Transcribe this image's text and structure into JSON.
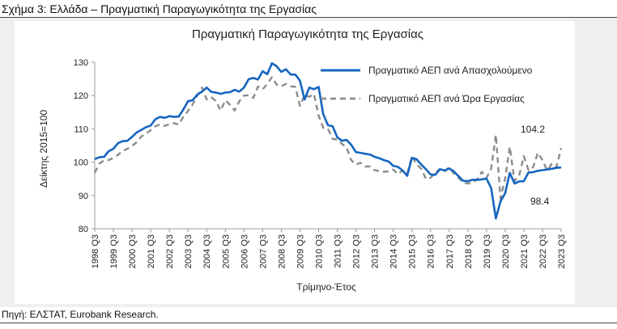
{
  "figure_title": "Σχήμα 3: Ελλάδα – Πραγματική Παραγωγικότητα της Εργασίας",
  "source": "Πηγή: ΕΛΣΤΑΤ, Eurobank Research.",
  "colors": {
    "series1": "#1565c0",
    "series2": "#8c8c8c",
    "background_band": "#efefef"
  },
  "chart_data": {
    "type": "line",
    "title": "Πραγματική Παραγωγικότητα της Εργασίας",
    "xlabel": "Τρίμηνο-Έτος",
    "ylabel": "Δείκτης 2015=100",
    "ylim": [
      80,
      130
    ],
    "yticks": [
      80,
      90,
      100,
      110,
      120,
      130
    ],
    "xticks": [
      "1998 Q3",
      "1999 Q3",
      "2000 Q3",
      "2001 Q3",
      "2002 Q3",
      "2003 Q3",
      "2004 Q3",
      "2005 Q3",
      "2006 Q3",
      "2007 Q3",
      "2008 Q3",
      "2009 Q3",
      "2010 Q3",
      "2011 Q3",
      "2012 Q3",
      "2013 Q3",
      "2014 Q3",
      "2015 Q3",
      "2016 Q3",
      "2017 Q3",
      "2018 Q3",
      "2019 Q3",
      "2020 Q3",
      "2021 Q3",
      "2022 Q3",
      "2023 Q3"
    ],
    "x_start": "1998 Q3",
    "grid": false,
    "legend_position": "top-right",
    "series": [
      {
        "name": "Πραγματικό ΑΕΠ ανά Απασχολούμενο",
        "style": "solid",
        "values": [
          100.9,
          101.5,
          101.6,
          103.3,
          104.0,
          105.7,
          106.3,
          106.4,
          107.6,
          108.9,
          109.7,
          110.5,
          111.0,
          112.9,
          113.6,
          113.3,
          113.8,
          113.6,
          113.7,
          115.8,
          118.3,
          118.6,
          120.3,
          121.2,
          122.4,
          121.1,
          120.9,
          120.5,
          120.9,
          121.0,
          121.7,
          121.2,
          122.4,
          124.9,
          125.3,
          124.8,
          127.3,
          126.4,
          129.7,
          128.8,
          127.1,
          127.9,
          126.3,
          126.3,
          124.5,
          118.8,
          122.4,
          121.9,
          122.6,
          114.4,
          111.1,
          110.8,
          107.5,
          106.4,
          106.7,
          105.2,
          103.0,
          102.8,
          102.5,
          102.3,
          101.6,
          101.2,
          100.6,
          100.2,
          98.9,
          98.6,
          97.5,
          95.9,
          101.3,
          100.9,
          99.3,
          97.9,
          96.3,
          96.2,
          97.9,
          97.5,
          98.1,
          97.2,
          95.8,
          94.4,
          94.3,
          94.7,
          94.7,
          94.8,
          95.1,
          92.2,
          83.1,
          88.2,
          90.7,
          96.8,
          93.6,
          94.2,
          94.3,
          96.9,
          97.0,
          97.4,
          97.6,
          97.8,
          98.0,
          98.3,
          98.4
        ]
      },
      {
        "name": "Πραγματικό ΑΕΠ ανά Ώρα Εργασίας",
        "style": "dashed",
        "values": [
          96.8,
          99.6,
          100.5,
          100.6,
          101.3,
          102.2,
          103.4,
          104.0,
          104.9,
          106.0,
          107.7,
          108.6,
          109.6,
          110.8,
          111.3,
          110.9,
          111.4,
          111.7,
          111.3,
          113.6,
          115.4,
          117.4,
          120.0,
          122.4,
          118.8,
          119.5,
          118.3,
          115.5,
          118.6,
          117.2,
          115.5,
          118.3,
          120.0,
          120.1,
          119.3,
          122.7,
          121.9,
          123.5,
          125.5,
          123.3,
          122.8,
          123.5,
          122.8,
          122.6,
          116.9,
          120.2,
          119.6,
          120.5,
          114.0,
          110.3,
          110.0,
          107.0,
          106.8,
          105.5,
          104.4,
          100.6,
          99.3,
          99.8,
          98.7,
          98.7,
          97.6,
          97.3,
          97.1,
          97.2,
          97.8,
          96.4,
          97.5,
          96.5,
          101.8,
          99.4,
          98.0,
          95.0,
          95.3,
          96.9,
          97.9,
          97.1,
          98.5,
          96.5,
          95.3,
          93.8,
          93.6,
          93.9,
          94.8,
          97.1,
          95.3,
          98.0,
          108.2,
          89.1,
          95.1,
          104.6,
          94.3,
          96.0,
          101.8,
          97.6,
          98.5,
          102.8,
          100.6,
          97.5,
          99.5,
          98.5,
          104.2
        ]
      }
    ],
    "annotations": [
      {
        "label": "104.2",
        "series": 1
      },
      {
        "label": "98.4",
        "series": 0
      }
    ]
  }
}
